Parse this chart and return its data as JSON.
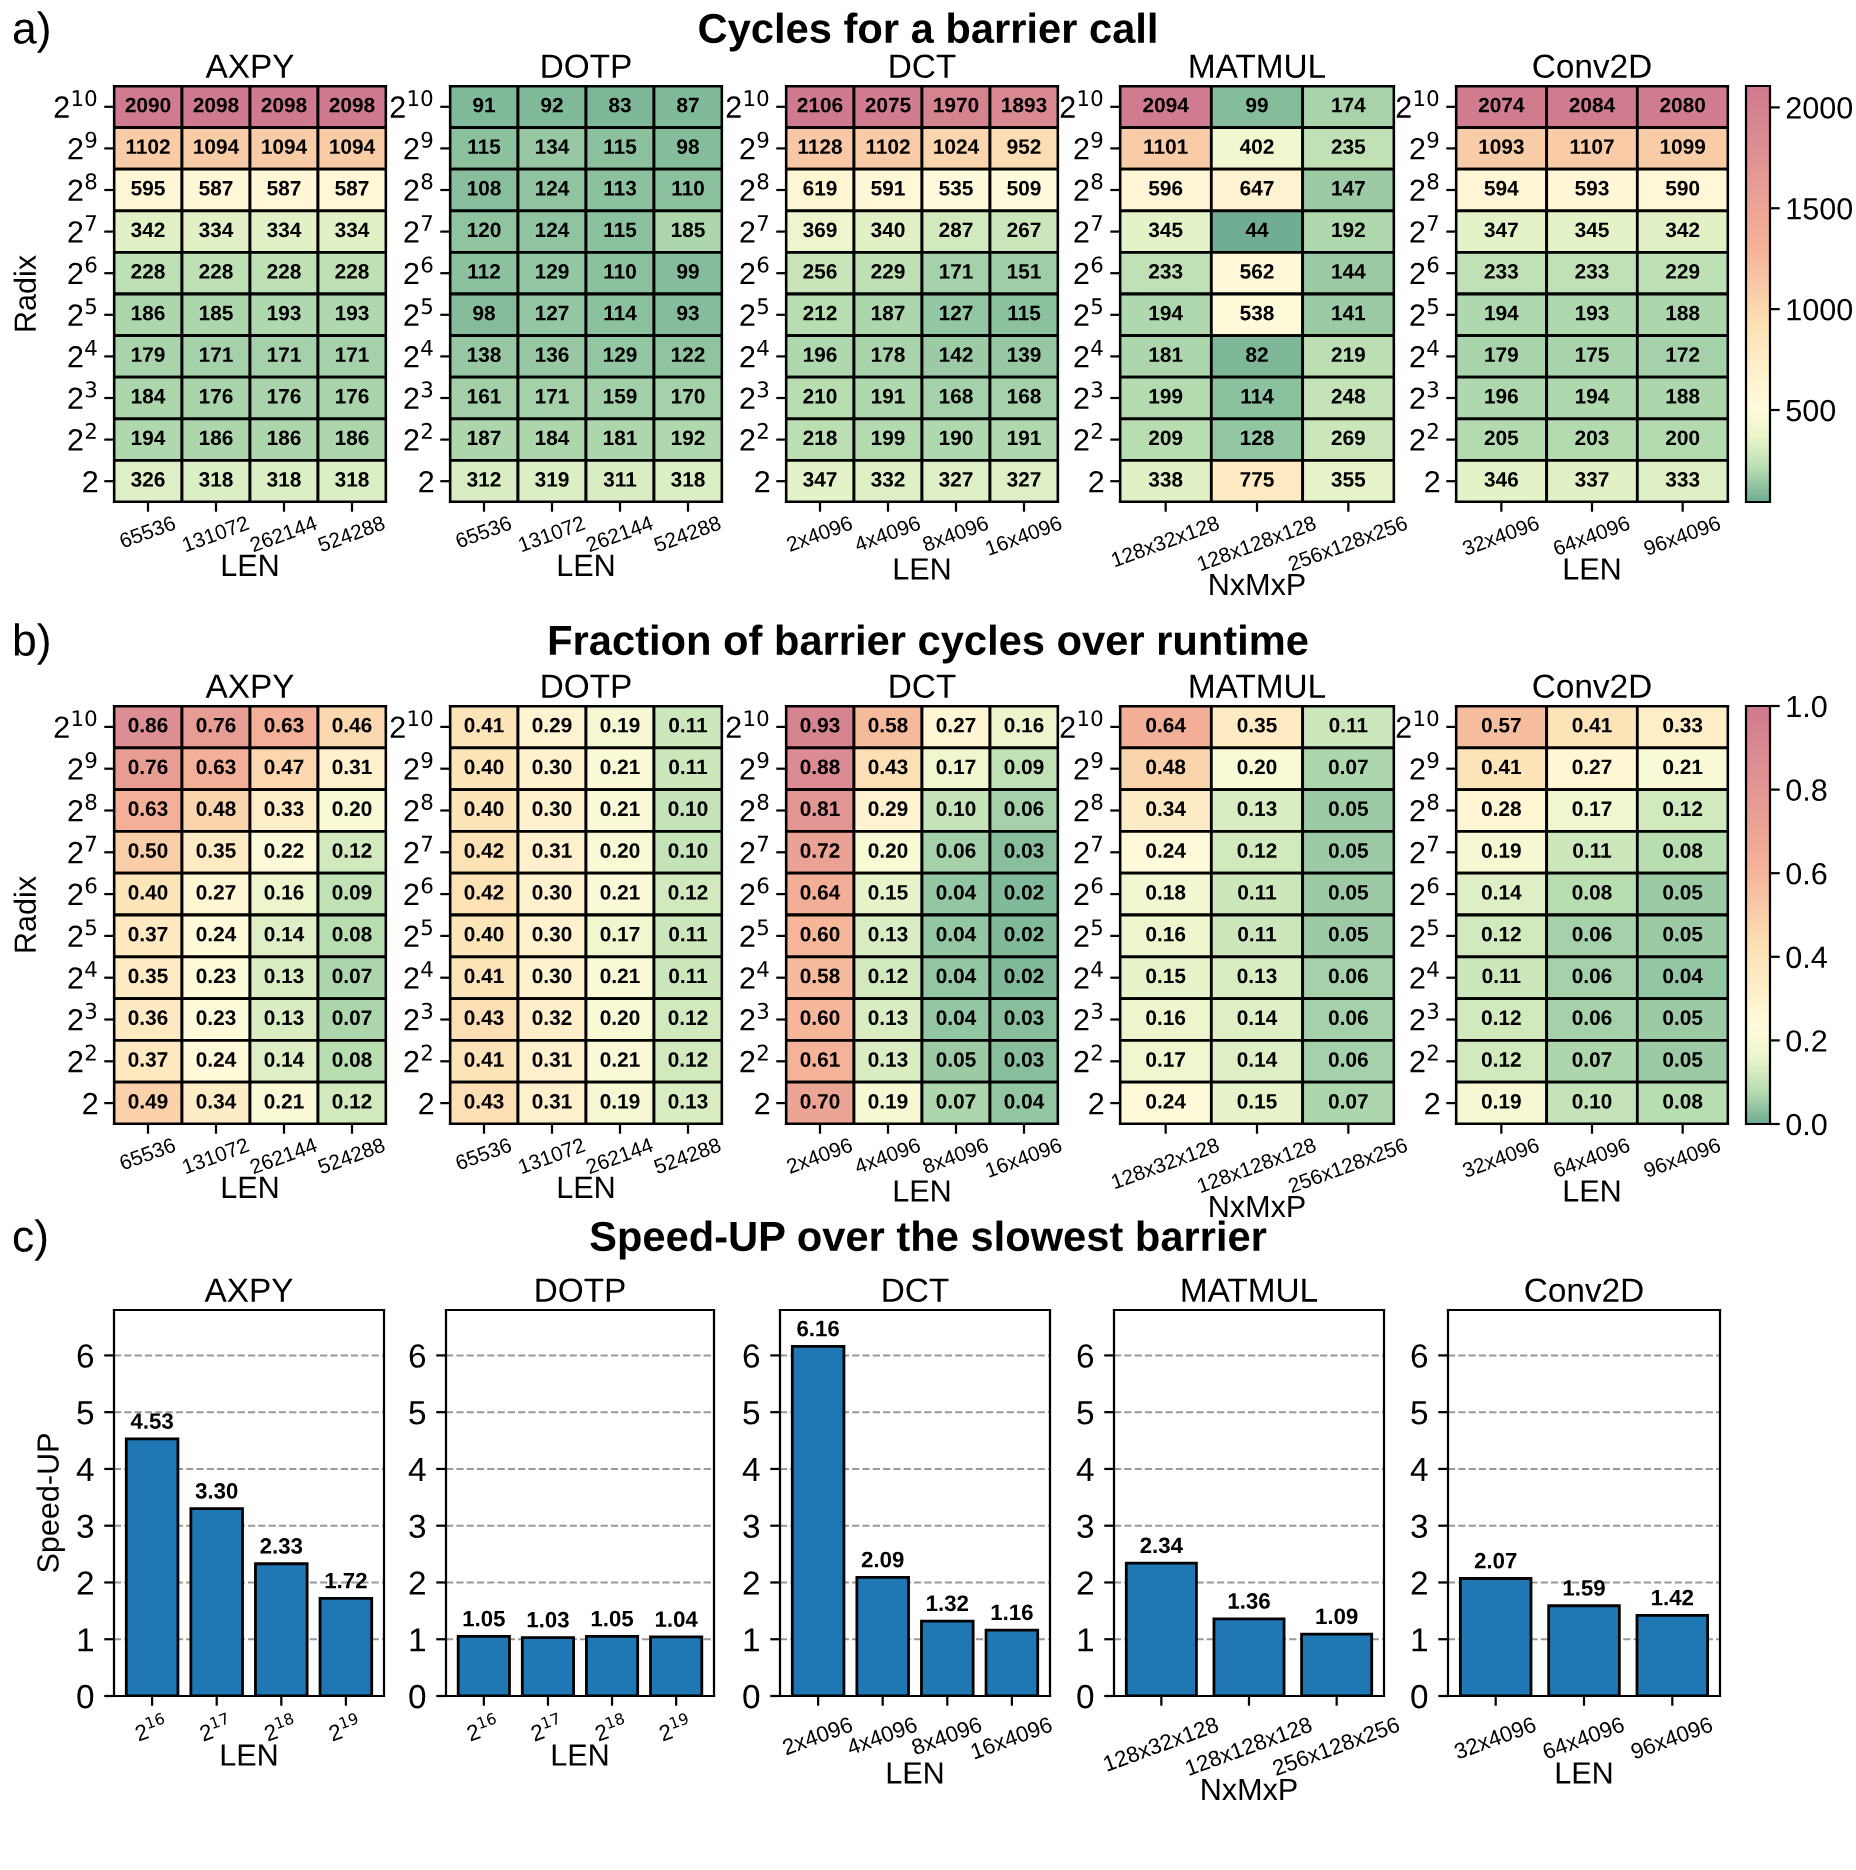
{
  "chart_data": [
    {
      "type": "heatmap",
      "title": "AXPY",
      "xlabel": "LEN",
      "ylabel": "Radix",
      "data_labels": true,
      "annotations": [
        "a)",
        "Cycles for a barrier call"
      ],
      "categories": [
        "65536",
        "131072",
        "262144",
        "524288"
      ],
      "y_categories": [
        "2$^{10}$",
        "2$^{9}$",
        "2$^{8}$",
        "2$^{7}$",
        "2$^{6}$",
        "2$^{5}$",
        "2$^{4}$",
        "2$^{3}$",
        "2$^{2}$",
        "2"
      ],
      "cells": [
        [
          2090,
          2098,
          2098,
          2098
        ],
        [
          1102,
          1094,
          1094,
          1094
        ],
        [
          595,
          587,
          587,
          587
        ],
        [
          342,
          334,
          334,
          334
        ],
        [
          228,
          228,
          228,
          228
        ],
        [
          186,
          185,
          193,
          193
        ],
        [
          179,
          171,
          171,
          171
        ],
        [
          184,
          176,
          176,
          176
        ],
        [
          194,
          186,
          186,
          186
        ],
        [
          326,
          318,
          318,
          318
        ]
      ]
    },
    {
      "type": "heatmap",
      "title": "DOTP",
      "xlabel": "LEN",
      "data_labels": true,
      "categories": [
        "65536",
        "131072",
        "262144",
        "524288"
      ],
      "y_categories": [
        "2$^{10}$",
        "2$^{9}$",
        "2$^{8}$",
        "2$^{7}$",
        "2$^{6}$",
        "2$^{5}$",
        "2$^{4}$",
        "2$^{3}$",
        "2$^{2}$",
        "2"
      ],
      "cells": [
        [
          91,
          92,
          83,
          87
        ],
        [
          115,
          134,
          115,
          98
        ],
        [
          108,
          124,
          113,
          110
        ],
        [
          120,
          124,
          115,
          185
        ],
        [
          112,
          129,
          110,
          99
        ],
        [
          98,
          127,
          114,
          93
        ],
        [
          138,
          136,
          129,
          122
        ],
        [
          161,
          171,
          159,
          170
        ],
        [
          187,
          184,
          181,
          192
        ],
        [
          312,
          319,
          311,
          318
        ]
      ]
    },
    {
      "type": "heatmap",
      "title": "DCT",
      "xlabel": "LEN",
      "data_labels": true,
      "categories": [
        "2x4096",
        "4x4096",
        "8x4096",
        "16x4096"
      ],
      "y_categories": [
        "2$^{10}$",
        "2$^{9}$",
        "2$^{8}$",
        "2$^{7}$",
        "2$^{6}$",
        "2$^{5}$",
        "2$^{4}$",
        "2$^{3}$",
        "2$^{2}$",
        "2"
      ],
      "cells": [
        [
          2106,
          2075,
          1970,
          1893
        ],
        [
          1128,
          1102,
          1024,
          952
        ],
        [
          619,
          591,
          535,
          509
        ],
        [
          369,
          340,
          287,
          267
        ],
        [
          256,
          229,
          171,
          151
        ],
        [
          212,
          187,
          127,
          115
        ],
        [
          196,
          178,
          142,
          139
        ],
        [
          210,
          191,
          168,
          168
        ],
        [
          218,
          199,
          190,
          191
        ],
        [
          347,
          332,
          327,
          327
        ]
      ]
    },
    {
      "type": "heatmap",
      "title": "MATMUL",
      "xlabel": "NxMxP",
      "data_labels": true,
      "categories": [
        "128x32x128",
        "128x128x128",
        "256x128x256"
      ],
      "y_categories": [
        "2$^{10}$",
        "2$^{9}$",
        "2$^{8}$",
        "2$^{7}$",
        "2$^{6}$",
        "2$^{5}$",
        "2$^{4}$",
        "2$^{3}$",
        "2$^{2}$",
        "2"
      ],
      "cells": [
        [
          2094,
          99,
          174
        ],
        [
          1101,
          402,
          235
        ],
        [
          596,
          647,
          147
        ],
        [
          345,
          44,
          192
        ],
        [
          233,
          562,
          144
        ],
        [
          194,
          538,
          141
        ],
        [
          181,
          82,
          219
        ],
        [
          199,
          114,
          248
        ],
        [
          209,
          128,
          269
        ],
        [
          338,
          775,
          355
        ]
      ]
    },
    {
      "type": "heatmap",
      "title": "Conv2D",
      "xlabel": "LEN",
      "data_labels": true,
      "categories": [
        "32x4096",
        "64x4096",
        "96x4096"
      ],
      "y_categories": [
        "2$^{10}$",
        "2$^{9}$",
        "2$^{8}$",
        "2$^{7}$",
        "2$^{6}$",
        "2$^{5}$",
        "2$^{4}$",
        "2$^{3}$",
        "2$^{2}$",
        "2"
      ],
      "clim": [
        44,
        2106
      ],
      "cticks": [
        500,
        1000,
        1500,
        2000
      ],
      "cells": [
        [
          2074,
          2084,
          2080
        ],
        [
          1093,
          1107,
          1099
        ],
        [
          594,
          593,
          590
        ],
        [
          347,
          345,
          342
        ],
        [
          233,
          233,
          229
        ],
        [
          194,
          193,
          188
        ],
        [
          179,
          175,
          172
        ],
        [
          196,
          194,
          188
        ],
        [
          205,
          203,
          200
        ],
        [
          346,
          337,
          333
        ]
      ]
    },
    {
      "type": "heatmap",
      "title": "AXPY",
      "xlabel": "LEN",
      "ylabel": "Radix",
      "annotations": [
        "b)",
        "Fraction of barrier cycles over runtime"
      ],
      "categories": [
        "65536",
        "131072",
        "262144",
        "524288"
      ],
      "y_categories": [
        "2$^{10}$",
        "2$^{9}$",
        "2$^{8}$",
        "2$^{7}$",
        "2$^{6}$",
        "2$^{5}$",
        "2$^{4}$",
        "2$^{3}$",
        "2$^{2}$",
        "2"
      ],
      "cells": [
        [
          0.86,
          0.76,
          0.63,
          0.46
        ],
        [
          0.76,
          0.63,
          0.47,
          0.31
        ],
        [
          0.63,
          0.48,
          0.33,
          0.2
        ],
        [
          0.5,
          0.35,
          0.22,
          0.12
        ],
        [
          0.4,
          0.27,
          0.16,
          0.09
        ],
        [
          0.37,
          0.24,
          0.14,
          0.08
        ],
        [
          0.35,
          0.23,
          0.13,
          0.07
        ],
        [
          0.36,
          0.23,
          0.13,
          0.07
        ],
        [
          0.37,
          0.24,
          0.14,
          0.08
        ],
        [
          0.49,
          0.34,
          0.21,
          0.12
        ]
      ],
      "cell_labels": [
        [
          "0.86",
          "0.76",
          "0.63",
          "0.46"
        ],
        [
          "0.76",
          "0.63",
          "0.47",
          "0.31"
        ],
        [
          "0.63",
          "0.48",
          "0.33",
          "0.20"
        ],
        [
          "0.50",
          "0.35",
          "0.22",
          "0.12"
        ],
        [
          "0.40",
          "0.27",
          "0.16",
          "0.09"
        ],
        [
          "0.37",
          "0.24",
          "0.14",
          "0.08"
        ],
        [
          "0.35",
          "0.23",
          "0.13",
          "0.07"
        ],
        [
          "0.36",
          "0.23",
          "0.13",
          "0.07"
        ],
        [
          "0.37",
          "0.24",
          "0.14",
          "0.08"
        ],
        [
          "0.49",
          "0.34",
          "0.21",
          "0.12"
        ]
      ]
    },
    {
      "type": "heatmap",
      "title": "DOTP",
      "xlabel": "LEN",
      "categories": [
        "65536",
        "131072",
        "262144",
        "524288"
      ],
      "y_categories": [
        "2$^{10}$",
        "2$^{9}$",
        "2$^{8}$",
        "2$^{7}$",
        "2$^{6}$",
        "2$^{5}$",
        "2$^{4}$",
        "2$^{3}$",
        "2$^{2}$",
        "2"
      ],
      "cells": [
        [
          0.41,
          0.29,
          0.19,
          0.11
        ],
        [
          0.4,
          0.3,
          0.21,
          0.11
        ],
        [
          0.4,
          0.3,
          0.21,
          0.1
        ],
        [
          0.42,
          0.31,
          0.2,
          0.1
        ],
        [
          0.42,
          0.3,
          0.21,
          0.12
        ],
        [
          0.4,
          0.3,
          0.17,
          0.11
        ],
        [
          0.41,
          0.3,
          0.21,
          0.11
        ],
        [
          0.43,
          0.32,
          0.2,
          0.12
        ],
        [
          0.41,
          0.31,
          0.21,
          0.12
        ],
        [
          0.43,
          0.31,
          0.19,
          0.13
        ]
      ],
      "cell_labels": [
        [
          "0.41",
          "0.29",
          "0.19",
          "0.11"
        ],
        [
          "0.40",
          "0.30",
          "0.21",
          "0.11"
        ],
        [
          "0.40",
          "0.30",
          "0.21",
          "0.10"
        ],
        [
          "0.42",
          "0.31",
          "0.20",
          "0.10"
        ],
        [
          "0.42",
          "0.30",
          "0.21",
          "0.12"
        ],
        [
          "0.40",
          "0.30",
          "0.17",
          "0.11"
        ],
        [
          "0.41",
          "0.30",
          "0.21",
          "0.11"
        ],
        [
          "0.43",
          "0.32",
          "0.20",
          "0.12"
        ],
        [
          "0.41",
          "0.31",
          "0.21",
          "0.12"
        ],
        [
          "0.43",
          "0.31",
          "0.19",
          "0.13"
        ]
      ]
    },
    {
      "type": "heatmap",
      "title": "DCT",
      "xlabel": "LEN",
      "categories": [
        "2x4096",
        "4x4096",
        "8x4096",
        "16x4096"
      ],
      "y_categories": [
        "2$^{10}$",
        "2$^{9}$",
        "2$^{8}$",
        "2$^{7}$",
        "2$^{6}$",
        "2$^{5}$",
        "2$^{4}$",
        "2$^{3}$",
        "2$^{2}$",
        "2"
      ],
      "cells": [
        [
          0.93,
          0.58,
          0.27,
          0.16
        ],
        [
          0.88,
          0.43,
          0.17,
          0.09
        ],
        [
          0.81,
          0.29,
          0.1,
          0.06
        ],
        [
          0.72,
          0.2,
          0.06,
          0.03
        ],
        [
          0.64,
          0.15,
          0.04,
          0.02
        ],
        [
          0.6,
          0.13,
          0.04,
          0.02
        ],
        [
          0.58,
          0.12,
          0.04,
          0.02
        ],
        [
          0.6,
          0.13,
          0.04,
          0.03
        ],
        [
          0.61,
          0.13,
          0.05,
          0.03
        ],
        [
          0.7,
          0.19,
          0.07,
          0.04
        ]
      ],
      "cell_labels": [
        [
          "0.93",
          "0.58",
          "0.27",
          "0.16"
        ],
        [
          "0.88",
          "0.43",
          "0.17",
          "0.09"
        ],
        [
          "0.81",
          "0.29",
          "0.10",
          "0.06"
        ],
        [
          "0.72",
          "0.20",
          "0.06",
          "0.03"
        ],
        [
          "0.64",
          "0.15",
          "0.04",
          "0.02"
        ],
        [
          "0.60",
          "0.13",
          "0.04",
          "0.02"
        ],
        [
          "0.58",
          "0.12",
          "0.04",
          "0.02"
        ],
        [
          "0.60",
          "0.13",
          "0.04",
          "0.03"
        ],
        [
          "0.61",
          "0.13",
          "0.05",
          "0.03"
        ],
        [
          "0.70",
          "0.19",
          "0.07",
          "0.04"
        ]
      ]
    },
    {
      "type": "heatmap",
      "title": "MATMUL",
      "xlabel": "NxMxP",
      "categories": [
        "128x32x128",
        "128x128x128",
        "256x128x256"
      ],
      "y_categories": [
        "2$^{10}$",
        "2$^{9}$",
        "2$^{8}$",
        "2$^{7}$",
        "2$^{6}$",
        "2$^{5}$",
        "2$^{4}$",
        "2$^{3}$",
        "2$^{2}$",
        "2"
      ],
      "cells": [
        [
          0.64,
          0.35,
          0.11
        ],
        [
          0.48,
          0.2,
          0.07
        ],
        [
          0.34,
          0.13,
          0.05
        ],
        [
          0.24,
          0.12,
          0.05
        ],
        [
          0.18,
          0.11,
          0.05
        ],
        [
          0.16,
          0.11,
          0.05
        ],
        [
          0.15,
          0.13,
          0.06
        ],
        [
          0.16,
          0.14,
          0.06
        ],
        [
          0.17,
          0.14,
          0.06
        ],
        [
          0.24,
          0.15,
          0.07
        ]
      ],
      "cell_labels": [
        [
          "0.64",
          "0.35",
          "0.11"
        ],
        [
          "0.48",
          "0.20",
          "0.07"
        ],
        [
          "0.34",
          "0.13",
          "0.05"
        ],
        [
          "0.24",
          "0.12",
          "0.05"
        ],
        [
          "0.18",
          "0.11",
          "0.05"
        ],
        [
          "0.16",
          "0.11",
          "0.05"
        ],
        [
          "0.15",
          "0.13",
          "0.06"
        ],
        [
          "0.16",
          "0.14",
          "0.06"
        ],
        [
          "0.17",
          "0.14",
          "0.06"
        ],
        [
          "0.24",
          "0.15",
          "0.07"
        ]
      ]
    },
    {
      "type": "heatmap",
      "title": "Conv2D",
      "xlabel": "LEN",
      "categories": [
        "32x4096",
        "64x4096",
        "96x4096"
      ],
      "y_categories": [
        "2$^{10}$",
        "2$^{9}$",
        "2$^{8}$",
        "2$^{7}$",
        "2$^{6}$",
        "2$^{5}$",
        "2$^{4}$",
        "2$^{3}$",
        "2$^{2}$",
        "2"
      ],
      "clim": [
        0,
        1
      ],
      "cticks": [
        {
          "value": 0,
          "label": "0.0"
        },
        0.2,
        0.4,
        0.6,
        0.8,
        {
          "value": 1,
          "label": "1.0"
        }
      ],
      "cells": [
        [
          0.57,
          0.41,
          0.33
        ],
        [
          0.41,
          0.27,
          0.21
        ],
        [
          0.28,
          0.17,
          0.12
        ],
        [
          0.19,
          0.11,
          0.08
        ],
        [
          0.14,
          0.08,
          0.05
        ],
        [
          0.12,
          0.06,
          0.05
        ],
        [
          0.11,
          0.06,
          0.04
        ],
        [
          0.12,
          0.06,
          0.05
        ],
        [
          0.12,
          0.07,
          0.05
        ],
        [
          0.19,
          0.1,
          0.08
        ]
      ],
      "cell_labels": [
        [
          "0.57",
          "0.41",
          "0.33"
        ],
        [
          "0.41",
          "0.27",
          "0.21"
        ],
        [
          "0.28",
          "0.17",
          "0.12"
        ],
        [
          "0.19",
          "0.11",
          "0.08"
        ],
        [
          "0.14",
          "0.08",
          "0.05"
        ],
        [
          "0.12",
          "0.06",
          "0.05"
        ],
        [
          "0.11",
          "0.06",
          "0.04"
        ],
        [
          "0.12",
          "0.06",
          "0.05"
        ],
        [
          "0.12",
          "0.07",
          "0.05"
        ],
        [
          "0.19",
          "0.10",
          "0.08"
        ]
      ]
    },
    {
      "type": "bar",
      "title": "AXPY",
      "xlabel": "LEN",
      "ylabel": "Speed-UP",
      "annotations": [
        "c)",
        "Speed-UP over the slowest barrier"
      ],
      "categories": [
        "2$^{16}$",
        "2$^{17}$",
        "2$^{18}$",
        "2$^{19}$"
      ],
      "values": [
        4.53,
        3.3,
        2.33,
        1.72
      ],
      "value_labels": [
        "4.53",
        "3.30",
        "2.33",
        "1.72"
      ],
      "color": "#1f77b4",
      "ylim": [
        0,
        6.8
      ],
      "yticks": [
        0,
        1,
        2,
        3,
        4,
        5,
        6
      ],
      "grid": "y"
    },
    {
      "type": "bar",
      "title": "DOTP",
      "xlabel": "LEN",
      "categories": [
        "2$^{16}$",
        "2$^{17}$",
        "2$^{18}$",
        "2$^{19}$"
      ],
      "values": [
        1.05,
        1.03,
        1.05,
        1.04
      ],
      "value_labels": [
        "1.05",
        "1.03",
        "1.05",
        "1.04"
      ],
      "color": "#1f77b4",
      "ylim": [
        0,
        6.8
      ],
      "yticks": [
        0,
        1,
        2,
        3,
        4,
        5,
        6
      ],
      "grid": "y"
    },
    {
      "type": "bar",
      "title": "DCT",
      "xlabel": "LEN",
      "categories": [
        "2x4096",
        "4x4096",
        "8x4096",
        "16x4096"
      ],
      "values": [
        6.16,
        2.09,
        1.32,
        1.16
      ],
      "value_labels": [
        "6.16",
        "2.09",
        "1.32",
        "1.16"
      ],
      "color": "#1f77b4",
      "ylim": [
        0,
        6.8
      ],
      "yticks": [
        0,
        1,
        2,
        3,
        4,
        5,
        6
      ],
      "grid": "y"
    },
    {
      "type": "bar",
      "title": "MATMUL",
      "xlabel": "NxMxP",
      "categories": [
        "128x32x128",
        "128x128x128",
        "256x128x256"
      ],
      "values": [
        2.34,
        1.36,
        1.09
      ],
      "value_labels": [
        "2.34",
        "1.36",
        "1.09"
      ],
      "color": "#1f77b4",
      "ylim": [
        0,
        6.8
      ],
      "yticks": [
        0,
        1,
        2,
        3,
        4,
        5,
        6
      ],
      "grid": "y"
    },
    {
      "type": "bar",
      "title": "Conv2D",
      "xlabel": "LEN",
      "categories": [
        "32x4096",
        "64x4096",
        "96x4096"
      ],
      "values": [
        2.07,
        1.59,
        1.42
      ],
      "value_labels": [
        "2.07",
        "1.59",
        "1.42"
      ],
      "color": "#1f77b4",
      "ylim": [
        0,
        6.8
      ],
      "yticks": [
        0,
        1,
        2,
        3,
        4,
        5,
        6
      ],
      "grid": "y"
    }
  ]
}
